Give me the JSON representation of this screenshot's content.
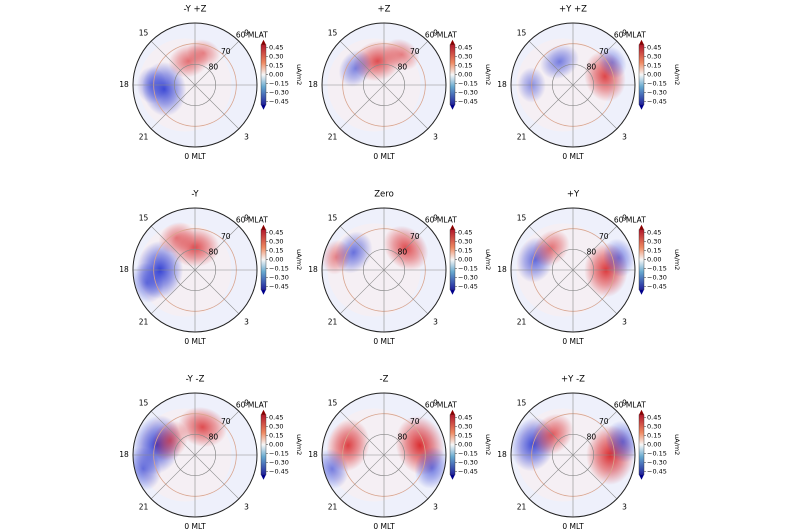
{
  "figure": {
    "colorbar_unit": "uA/m2",
    "colorbar_ticks": [
      "0.45",
      "0.30",
      "0.15",
      "0.00",
      "−0.15",
      "−0.30",
      "−0.45"
    ],
    "colors": {
      "positive": "#d7191c",
      "negative": "#1f2fd0",
      "grid": "#8a8a8a",
      "ring_warm": "#d9a58f"
    },
    "mlt_labels": {
      "top_left": "15",
      "top_right": "9",
      "left": "18",
      "bottom_left": "21",
      "bottom_right": "3",
      "bottom": "0 MLT"
    },
    "mlat_labels": {
      "ring60": "60 MLAT",
      "ring70": "70",
      "ring80": "80"
    }
  },
  "chart_data": [
    {
      "type": "heatmap",
      "title": "-Y +Z",
      "colorbar_range": [
        -0.45,
        0.45
      ],
      "regions": [
        {
          "sign": "neg",
          "mlt": 18.5,
          "mlat": 75,
          "amp": 0.85
        },
        {
          "sign": "pos",
          "mlt": 13,
          "mlat": 78,
          "amp": 0.45
        },
        {
          "sign": "neg",
          "mlt": 18,
          "mlat": 69,
          "amp": 0.35
        },
        {
          "sign": "pos",
          "mlt": 11,
          "mlat": 74,
          "amp": 0.25
        }
      ]
    },
    {
      "type": "heatmap",
      "title": "+Z",
      "colorbar_range": [
        -0.45,
        0.45
      ],
      "regions": [
        {
          "sign": "pos",
          "mlt": 13,
          "mlat": 78,
          "amp": 0.7
        },
        {
          "sign": "neg",
          "mlt": 16,
          "mlat": 74,
          "amp": 0.4
        },
        {
          "sign": "pos",
          "mlt": 10,
          "mlat": 73,
          "amp": 0.35
        }
      ]
    },
    {
      "type": "heatmap",
      "title": "+Y +Z",
      "colorbar_range": [
        -0.45,
        0.45
      ],
      "regions": [
        {
          "sign": "pos",
          "mlt": 7,
          "mlat": 74,
          "amp": 0.75
        },
        {
          "sign": "neg",
          "mlt": 14,
          "mlat": 77,
          "amp": 0.45
        },
        {
          "sign": "neg",
          "mlt": 18,
          "mlat": 70,
          "amp": 0.3
        },
        {
          "sign": "neg",
          "mlt": 8,
          "mlat": 68,
          "amp": 0.25
        }
      ]
    },
    {
      "type": "heatmap",
      "title": "-Y",
      "colorbar_range": [
        -0.45,
        0.45
      ],
      "regions": [
        {
          "sign": "neg",
          "mlt": 18,
          "mlat": 73,
          "amp": 0.95
        },
        {
          "sign": "pos",
          "mlt": 12,
          "mlat": 79,
          "amp": 0.7
        },
        {
          "sign": "neg",
          "mlt": 19,
          "mlat": 66,
          "amp": 0.45
        },
        {
          "sign": "pos",
          "mlt": 14,
          "mlat": 72,
          "amp": 0.35
        }
      ]
    },
    {
      "type": "heatmap",
      "title": "Zero",
      "colorbar_range": [
        -0.45,
        0.45
      ],
      "regions": [
        {
          "sign": "pos",
          "mlt": 9,
          "mlat": 75,
          "amp": 0.7
        },
        {
          "sign": "neg",
          "mlt": 16,
          "mlat": 73,
          "amp": 0.55
        },
        {
          "sign": "pos",
          "mlt": 17,
          "mlat": 66,
          "amp": 0.3
        }
      ]
    },
    {
      "type": "heatmap",
      "title": "+Y",
      "colorbar_range": [
        -0.45,
        0.45
      ],
      "regions": [
        {
          "sign": "pos",
          "mlt": 6,
          "mlat": 74,
          "amp": 0.85
        },
        {
          "sign": "neg",
          "mlt": 17,
          "mlat": 71,
          "amp": 0.6
        },
        {
          "sign": "pos",
          "mlt": 15,
          "mlat": 75,
          "amp": 0.45
        },
        {
          "sign": "neg",
          "mlt": 7,
          "mlat": 67,
          "amp": 0.4
        }
      ]
    },
    {
      "type": "heatmap",
      "title": "-Y -Z",
      "colorbar_range": [
        -0.45,
        0.45
      ],
      "regions": [
        {
          "sign": "neg",
          "mlt": 17,
          "mlat": 71,
          "amp": 1.0
        },
        {
          "sign": "pos",
          "mlt": 11,
          "mlat": 76,
          "amp": 0.7
        },
        {
          "sign": "pos",
          "mlt": 16,
          "mlat": 76,
          "amp": 0.5
        },
        {
          "sign": "neg",
          "mlt": 19,
          "mlat": 64,
          "amp": 0.55
        }
      ]
    },
    {
      "type": "heatmap",
      "title": "-Z",
      "colorbar_range": [
        -0.45,
        0.45
      ],
      "regions": [
        {
          "sign": "pos",
          "mlt": 7,
          "mlat": 72,
          "amp": 1.0
        },
        {
          "sign": "pos",
          "mlt": 17,
          "mlat": 72,
          "amp": 0.8
        },
        {
          "sign": "neg",
          "mlt": 5,
          "mlat": 66,
          "amp": 0.5
        },
        {
          "sign": "neg",
          "mlt": 19,
          "mlat": 64,
          "amp": 0.45
        }
      ]
    },
    {
      "type": "heatmap",
      "title": "+Y -Z",
      "colorbar_range": [
        -0.45,
        0.45
      ],
      "regions": [
        {
          "sign": "pos",
          "mlt": 6,
          "mlat": 72,
          "amp": 1.0
        },
        {
          "sign": "neg",
          "mlt": 17,
          "mlat": 70,
          "amp": 0.85
        },
        {
          "sign": "pos",
          "mlt": 15,
          "mlat": 76,
          "amp": 0.6
        },
        {
          "sign": "neg",
          "mlt": 7,
          "mlat": 65,
          "amp": 0.5
        }
      ]
    }
  ]
}
